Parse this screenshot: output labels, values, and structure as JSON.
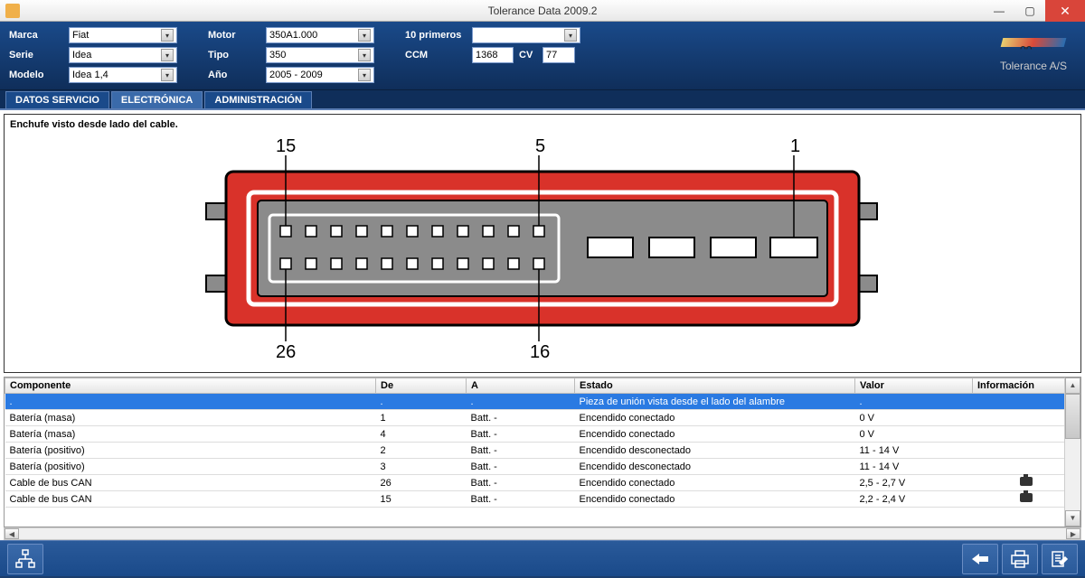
{
  "window": {
    "title": "Tolerance Data 2009.2"
  },
  "branding": {
    "name": "Tolerance A/S"
  },
  "filters": {
    "col1_labels": {
      "marca": "Marca",
      "serie": "Serie",
      "modelo": "Modelo"
    },
    "col1_values": {
      "marca": "Fiat",
      "serie": "Idea",
      "modelo": "Idea 1,4"
    },
    "col2_labels": {
      "motor": "Motor",
      "tipo": "Tipo",
      "ano": "Año"
    },
    "col2_values": {
      "motor": "350A1.000",
      "tipo": "350",
      "ano": "2005 - 2009"
    },
    "col3_labels": {
      "primeros": "10 primeros",
      "ccm": "CCM",
      "cv": "CV"
    },
    "col3_values": {
      "primeros": "",
      "ccm": "1368",
      "cv": "77"
    }
  },
  "tabs": {
    "t1": "DATOS SERVICIO",
    "t2": "ELECTRÓNICA",
    "t3": "ADMINISTRACIÓN"
  },
  "diagram": {
    "title": "Enchufe visto desde lado del cable.",
    "labels": {
      "p15": "15",
      "p5": "5",
      "p1": "1",
      "p26": "26",
      "p16": "16"
    },
    "colors": {
      "outer": "#d9322a",
      "inner": "#8b8b8b",
      "stroke": "#000000",
      "pin_fill": "#ffffff"
    }
  },
  "table": {
    "headers": {
      "c1": "Componente",
      "c2": "De",
      "c3": "A",
      "c4": "Estado",
      "c5": "Valor",
      "c6": "Información"
    },
    "rows": [
      {
        "c1": ".",
        "c2": ".",
        "c3": ".",
        "c4": "Pieza de unión vista desde el lado del alambre",
        "c5": ".",
        "c6": "",
        "sel": true
      },
      {
        "c1": "Batería (masa)",
        "c2": "1",
        "c3": "Batt. -",
        "c4": "Encendido conectado",
        "c5": "0 V",
        "c6": ""
      },
      {
        "c1": "Batería (masa)",
        "c2": "4",
        "c3": "Batt. -",
        "c4": "Encendido conectado",
        "c5": "0 V",
        "c6": ""
      },
      {
        "c1": "Batería (positivo)",
        "c2": "2",
        "c3": "Batt. -",
        "c4": "Encendido desconectado",
        "c5": "11 - 14 V",
        "c6": ""
      },
      {
        "c1": "Batería (positivo)",
        "c2": "3",
        "c3": "Batt. -",
        "c4": "Encendido desconectado",
        "c5": "11 - 14 V",
        "c6": ""
      },
      {
        "c1": "Cable de bus CAN",
        "c2": "26",
        "c3": "Batt. -",
        "c4": "Encendido conectado",
        "c5": "2,5 - 2,7 V",
        "c6": "cam"
      },
      {
        "c1": "Cable de bus CAN",
        "c2": "15",
        "c3": "Batt. -",
        "c4": "Encendido conectado",
        "c5": "2,2 - 2,4 V",
        "c6": "cam"
      }
    ],
    "col_widths": {
      "c1": "410px",
      "c2": "100px",
      "c3": "120px",
      "c4": "310px",
      "c5": "130px",
      "c6": "auto"
    }
  }
}
